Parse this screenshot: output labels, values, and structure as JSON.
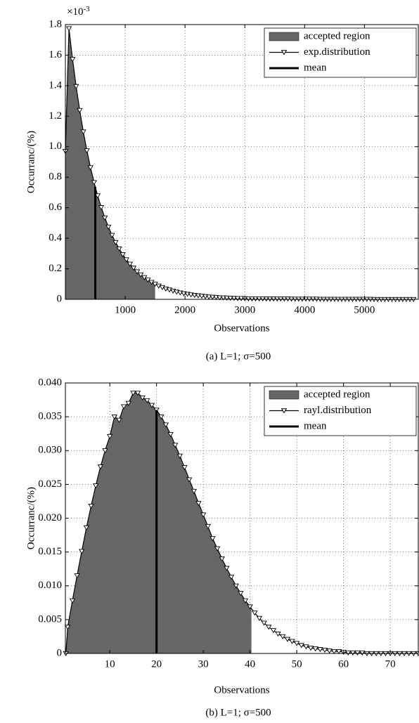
{
  "chart_data": [
    {
      "type": "line",
      "y_label": "Occurranc/(%)",
      "x_label": "Observations",
      "caption": "(a) L=1; σ=500",
      "y_exponent": {
        "base": "×10",
        "power": "-3"
      },
      "xlim": [
        0,
        5900
      ],
      "ylim": [
        0,
        1.8
      ],
      "xticks": [
        1000,
        2000,
        3000,
        4000,
        5000
      ],
      "yticks": [
        0,
        0.2,
        0.4,
        0.6,
        0.8,
        {
          "value": 1,
          "label": "1.0"
        },
        1.2,
        1.4,
        1.6,
        1.8
      ],
      "grid": true,
      "legend": "top-right",
      "series": [
        {
          "name": "accepted region",
          "kind": "area",
          "color": "#666666",
          "x_max": 1500
        },
        {
          "name": "exp.distribution",
          "kind": "line",
          "color": "#000000",
          "marker": "triangle-down",
          "x": [
            0,
            60,
            120,
            180,
            240,
            300,
            360,
            420,
            480,
            540,
            600,
            660,
            720,
            780,
            840,
            900,
            960,
            1020,
            1080,
            1140,
            1200,
            1260,
            1320,
            1380,
            1440,
            1500,
            1560,
            1620,
            1680,
            1740,
            1800,
            1860,
            1920,
            1980,
            2040,
            2100,
            2160,
            2220,
            2280,
            2340,
            2400,
            2460,
            2520,
            2580,
            2640,
            2700,
            2760,
            2820,
            2880,
            2940,
            3000,
            3060,
            3120,
            3180,
            3240,
            3300,
            3360,
            3420,
            3480,
            3540,
            3600,
            3660,
            3720,
            3780,
            3840,
            3900,
            3960,
            4020,
            4080,
            4140,
            4200,
            4260,
            4320,
            4380,
            4440,
            4500,
            4560,
            4620,
            4680,
            4740,
            4800,
            4860,
            4920,
            4980,
            5040,
            5100,
            5160,
            5220,
            5280,
            5340,
            5400,
            5460,
            5520,
            5580,
            5640,
            5700,
            5760,
            5820
          ],
          "values": [
            0.97,
            1.774,
            1.573,
            1.395,
            1.238,
            1.098,
            0.974,
            0.863,
            0.766,
            0.679,
            0.602,
            0.534,
            0.474,
            0.42,
            0.373,
            0.331,
            0.293,
            0.26,
            0.231,
            0.205,
            0.181,
            0.161,
            0.143,
            0.127,
            0.112,
            0.1,
            0.088,
            0.078,
            0.069,
            0.062,
            0.055,
            0.048,
            0.043,
            0.038,
            0.034,
            0.03,
            0.027,
            0.024,
            0.021,
            0.019,
            0.016,
            0.015,
            0.013,
            0.011,
            0.01,
            0.009,
            0.008,
            0.007,
            0.006,
            0.006,
            0.005,
            0.004,
            0.004,
            0.004,
            0.004,
            0.004,
            0.003,
            0.003,
            0.003,
            0.003,
            0.003,
            0.003,
            0.003,
            0.002,
            0.002,
            0.002,
            0.002,
            0.002,
            0.002,
            0.002,
            0.002,
            0.001,
            0.001,
            0.001,
            0.001,
            0.001,
            0.001,
            0.001,
            0.001,
            0.001,
            0.001,
            0.001,
            0.001,
            0.001,
            0.001,
            0.001,
            0,
            0,
            0,
            0,
            0,
            0,
            0,
            0,
            0,
            0,
            0,
            0
          ]
        },
        {
          "name": "mean",
          "kind": "vline",
          "color": "#000000",
          "x": 500
        }
      ]
    },
    {
      "type": "line",
      "y_label": "Occurranc/(%)",
      "x_label": "Observations",
      "caption": "(b) L=1; σ=500",
      "xlim": [
        0.5,
        76
      ],
      "ylim": [
        0,
        0.04
      ],
      "xticks": [
        10,
        20,
        30,
        40,
        50,
        60,
        70
      ],
      "yticks": [
        0,
        0.005,
        {
          "value": 0.01,
          "label": "0.010"
        },
        0.015,
        {
          "value": 0.02,
          "label": "0.020"
        },
        0.025,
        {
          "value": 0.03,
          "label": "0.030"
        },
        0.035,
        {
          "value": 0.04,
          "label": "0.040"
        }
      ],
      "grid": true,
      "legend": "top-right",
      "series": [
        {
          "name": "accepted region",
          "kind": "area",
          "color": "#666666",
          "x_max": 40.3
        },
        {
          "name": "rayl.distribution",
          "kind": "line",
          "color": "#000000",
          "marker": "triangle-down",
          "x": [
            0.6,
            1,
            2,
            3,
            4,
            5,
            6,
            7,
            8,
            9,
            10,
            11,
            12,
            13,
            14,
            15,
            16,
            17,
            18,
            19,
            20,
            21,
            22,
            23,
            24,
            25,
            26,
            27,
            28,
            29,
            30,
            31,
            32,
            33,
            34,
            35,
            36,
            37,
            38,
            39,
            40,
            41,
            42,
            43,
            44,
            45,
            46,
            47,
            48,
            49,
            50,
            51,
            52,
            53,
            54,
            55,
            56,
            57,
            58,
            59,
            60,
            61,
            62,
            63,
            64,
            65,
            66,
            67,
            68,
            69,
            70,
            71,
            72,
            73,
            74,
            75,
            76
          ],
          "values": [
            0,
            0.0039,
            0.0078,
            0.0115,
            0.0151,
            0.0186,
            0.0218,
            0.0248,
            0.0276,
            0.03,
            0.0321,
            0.035,
            0.0345,
            0.0365,
            0.037,
            0.0385,
            0.0385,
            0.0378,
            0.0374,
            0.0367,
            0.036,
            0.035,
            0.0338,
            0.0324,
            0.0308,
            0.0292,
            0.0275,
            0.0257,
            0.024,
            0.0222,
            0.0205,
            0.0188,
            0.017,
            0.0155,
            0.014,
            0.0126,
            0.0113,
            0.01,
            0.0089,
            0.0078,
            0.0069,
            0.006,
            0.0052,
            0.0045,
            0.0039,
            0.0034,
            0.0029,
            0.0025,
            0.0021,
            0.0018,
            0.0015,
            0.0012,
            0.001,
            0.0008,
            0.0007,
            0.0006,
            0.0005,
            0.0004,
            0.0003,
            0.0003,
            0.0002,
            0.0001,
            0.0001,
            0.0001,
            0.0001,
            0,
            0,
            0,
            0,
            0,
            0,
            0,
            0,
            0,
            0,
            0,
            0
          ]
        },
        {
          "name": "mean",
          "kind": "vline",
          "color": "#000000",
          "x": 20
        }
      ]
    }
  ]
}
